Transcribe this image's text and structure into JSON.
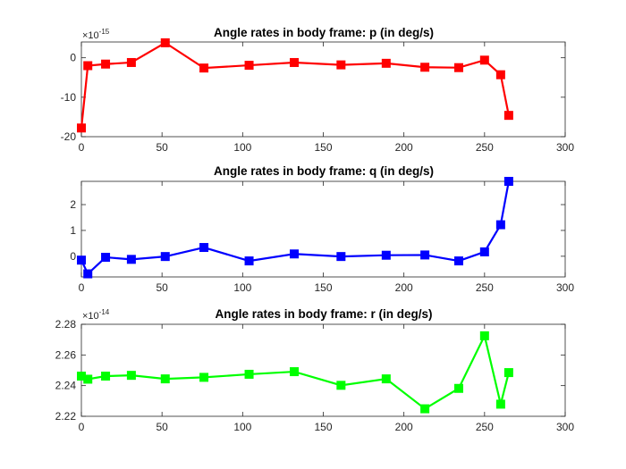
{
  "chart_data": [
    {
      "type": "line",
      "title": "Angle rates in body frame: p (in deg/s)",
      "xlabel": "",
      "ylabel": "",
      "exponent_label": "×10^-15",
      "exponent_base": "×10",
      "exponent_power": "-15",
      "xlim": [
        0,
        300
      ],
      "ylim": [
        -20,
        4
      ],
      "xticks": [
        0,
        50,
        100,
        150,
        200,
        250,
        300
      ],
      "yticks": [
        -20,
        -10,
        0
      ],
      "grid": false,
      "color": "#ff0000",
      "marker": "square",
      "x": [
        0,
        4,
        15,
        31,
        52,
        76,
        104,
        132,
        161,
        189,
        213,
        234,
        250,
        260,
        265
      ],
      "y": [
        -17.8,
        -2.0,
        -1.6,
        -1.2,
        3.8,
        -2.6,
        -1.9,
        -1.2,
        -1.8,
        -1.4,
        -2.4,
        -2.5,
        -0.6,
        -4.3,
        -14.6
      ]
    },
    {
      "type": "line",
      "title": "Angle rates in body frame: q (in deg/s)",
      "xlabel": "",
      "ylabel": "",
      "xlim": [
        0,
        300
      ],
      "ylim": [
        -0.8,
        2.9
      ],
      "xticks": [
        0,
        50,
        100,
        150,
        200,
        250,
        300
      ],
      "yticks": [
        0,
        1,
        2
      ],
      "grid": false,
      "color": "#0000ff",
      "marker": "square",
      "x": [
        0,
        4,
        15,
        31,
        52,
        76,
        104,
        132,
        161,
        189,
        213,
        234,
        250,
        260,
        265
      ],
      "y": [
        -0.15,
        -0.68,
        -0.04,
        -0.12,
        -0.01,
        0.34,
        -0.18,
        0.09,
        -0.01,
        0.04,
        0.05,
        -0.18,
        0.17,
        1.22,
        2.9
      ]
    },
    {
      "type": "line",
      "title": "Angle rates in body frame: r (in deg/s)",
      "xlabel": "",
      "ylabel": "",
      "exponent_label": "×10^-14",
      "exponent_base": "×10",
      "exponent_power": "-14",
      "xlim": [
        0,
        300
      ],
      "ylim": [
        2.22,
        2.28
      ],
      "xticks": [
        0,
        50,
        100,
        150,
        200,
        250,
        300
      ],
      "yticks": [
        2.22,
        2.24,
        2.26,
        2.28
      ],
      "ytick_labels": [
        "2.22",
        "2.24",
        "2.26",
        "2.28"
      ],
      "grid": false,
      "color": "#00ff00",
      "marker": "square",
      "x": [
        0,
        4,
        15,
        31,
        52,
        76,
        104,
        132,
        161,
        189,
        213,
        234,
        250,
        260,
        265
      ],
      "y": [
        2.2462,
        2.2442,
        2.2462,
        2.2467,
        2.2444,
        2.2454,
        2.2474,
        2.2491,
        2.2402,
        2.2444,
        2.2249,
        2.2382,
        2.2725,
        2.2279,
        2.2485
      ]
    }
  ]
}
